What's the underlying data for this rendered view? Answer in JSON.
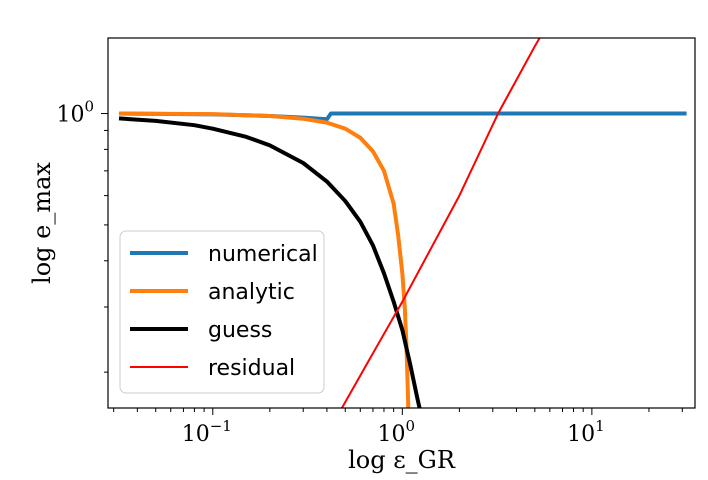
{
  "chart_data": {
    "type": "line",
    "title": "",
    "xlabel": "log ε_GR",
    "ylabel": "log e_max",
    "xscale": "log",
    "yscale": "log",
    "xlim": [
      0.028,
      35
    ],
    "ylim": [
      0.16,
      1.6
    ],
    "grid": false,
    "legend_position": "lower-left",
    "x_ticks": [
      {
        "value": 0.1,
        "label": "10",
        "exp": "−1"
      },
      {
        "value": 1,
        "label": "10",
        "exp": "0"
      },
      {
        "value": 10,
        "label": "10",
        "exp": "1"
      }
    ],
    "y_ticks": [
      {
        "value": 1,
        "label": "10",
        "exp": "0"
      }
    ],
    "series": [
      {
        "name": "numerical",
        "color": "#1f77b4",
        "width": 4,
        "points": [
          [
            0.032,
            1.0
          ],
          [
            0.1,
            0.995
          ],
          [
            0.2,
            0.985
          ],
          [
            0.3,
            0.975
          ],
          [
            0.4,
            0.965
          ],
          [
            0.42,
            1.0
          ],
          [
            1.0,
            1.0
          ],
          [
            10,
            1.0
          ],
          [
            31.6,
            1.0
          ]
        ]
      },
      {
        "name": "analytic",
        "color": "#ff7f0e",
        "width": 4,
        "points": [
          [
            0.032,
            1.0
          ],
          [
            0.1,
            0.996
          ],
          [
            0.2,
            0.985
          ],
          [
            0.3,
            0.968
          ],
          [
            0.4,
            0.945
          ],
          [
            0.5,
            0.91
          ],
          [
            0.6,
            0.86
          ],
          [
            0.7,
            0.79
          ],
          [
            0.8,
            0.7
          ],
          [
            0.9,
            0.57
          ],
          [
            0.95,
            0.47
          ],
          [
            1.0,
            0.37
          ],
          [
            1.03,
            0.3
          ],
          [
            1.05,
            0.24
          ],
          [
            1.065,
            0.19
          ],
          [
            1.075,
            0.16
          ]
        ]
      },
      {
        "name": "guess",
        "color": "#000000",
        "width": 4,
        "points": [
          [
            0.032,
            0.97
          ],
          [
            0.05,
            0.955
          ],
          [
            0.08,
            0.93
          ],
          [
            0.1,
            0.91
          ],
          [
            0.15,
            0.865
          ],
          [
            0.2,
            0.82
          ],
          [
            0.3,
            0.735
          ],
          [
            0.4,
            0.655
          ],
          [
            0.5,
            0.58
          ],
          [
            0.6,
            0.51
          ],
          [
            0.7,
            0.44
          ],
          [
            0.8,
            0.37
          ],
          [
            0.9,
            0.31
          ],
          [
            1.0,
            0.26
          ],
          [
            1.1,
            0.21
          ],
          [
            1.2,
            0.17
          ],
          [
            1.25,
            0.155
          ]
        ]
      },
      {
        "name": "residual",
        "color": "#ff0000",
        "width": 2,
        "points": [
          [
            0.48,
            0.16
          ],
          [
            0.7,
            0.225
          ],
          [
            1.0,
            0.31
          ],
          [
            2.0,
            0.6
          ],
          [
            3.2,
            1.0
          ],
          [
            5.0,
            1.52
          ],
          [
            5.3,
            1.6
          ]
        ]
      }
    ]
  }
}
